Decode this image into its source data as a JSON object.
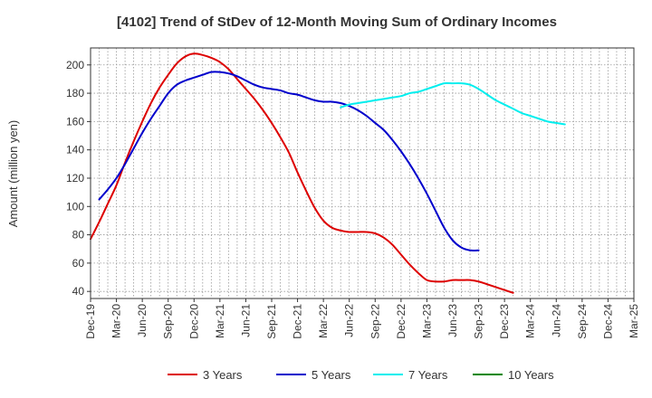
{
  "chart_data": {
    "type": "line",
    "title": "[4102]  Trend of StDev of 12-Month Moving Sum of Ordinary Incomes",
    "xlabel": "",
    "ylabel": "Amount (million yen)",
    "ylim": [
      35,
      212
    ],
    "yticks": [
      40,
      60,
      80,
      100,
      120,
      140,
      160,
      180,
      200
    ],
    "x_tick_labels": [
      "Dec-19",
      "Mar-20",
      "Jun-20",
      "Sep-20",
      "Dec-20",
      "Mar-21",
      "Jun-21",
      "Sep-21",
      "Dec-21",
      "Mar-22",
      "Jun-22",
      "Sep-22",
      "Dec-22",
      "Mar-23",
      "Jun-23",
      "Sep-23",
      "Dec-23",
      "Mar-24",
      "Jun-24",
      "Sep-24",
      "Dec-24",
      "Mar-25"
    ],
    "grid": true,
    "legend_position": "bottom",
    "series": [
      {
        "name": "3 Years",
        "color": "#dd0000",
        "start_index": 0,
        "values": [
          77,
          89,
          102,
          115,
          131,
          146,
          160,
          173,
          184,
          193,
          201,
          206,
          208,
          207,
          205,
          202,
          197,
          190,
          183,
          176,
          168,
          159,
          149,
          138,
          124,
          111,
          99,
          90,
          85,
          83,
          82,
          82,
          82,
          81,
          78,
          73,
          66,
          59,
          53,
          48,
          47,
          47,
          48,
          48,
          48,
          47,
          45,
          43,
          41,
          39
        ]
      },
      {
        "name": "5 Years",
        "color": "#0000cc",
        "start_index": 1,
        "values": [
          105,
          112,
          120,
          130,
          141,
          152,
          162,
          171,
          180,
          186,
          189,
          191,
          193,
          195,
          195,
          194,
          192,
          189,
          186,
          184,
          183,
          182,
          180,
          179,
          177,
          175,
          174,
          174,
          173,
          171,
          168,
          164,
          159,
          154,
          147,
          139,
          130,
          120,
          109,
          97,
          85,
          76,
          71,
          69,
          69
        ]
      },
      {
        "name": "7 Years",
        "color": "#00eeee",
        "start_index": 29,
        "values": [
          170,
          172,
          173,
          174,
          175,
          176,
          177,
          178,
          180,
          181,
          183,
          185,
          187,
          187,
          187,
          186,
          183,
          179,
          175,
          172,
          169,
          166,
          164,
          162,
          160,
          159,
          158
        ]
      },
      {
        "name": "10 Years",
        "color": "#008800",
        "start_index": 0,
        "values": []
      }
    ]
  }
}
